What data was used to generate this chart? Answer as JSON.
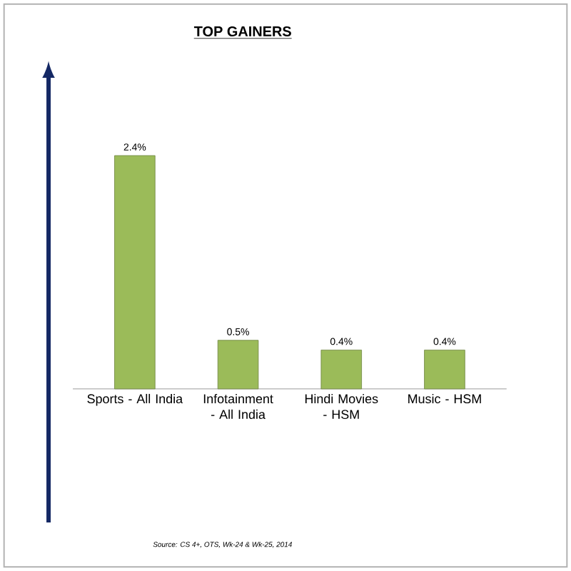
{
  "chart_data": {
    "type": "bar",
    "title": "TOP GAINERS",
    "categories": [
      "Sports - All India",
      "Infotainment - All India",
      "Hindi Movies - HSM",
      "Music - HSM"
    ],
    "values": [
      2.4,
      0.5,
      0.4,
      0.4
    ],
    "value_labels": [
      "2.4%",
      "0.5%",
      "0.4%",
      "0.4%"
    ],
    "color": "#9bbb59",
    "annotations": [
      "Source: CS 4+, OTS, Wk-24 & Wk-25, 2014"
    ]
  }
}
